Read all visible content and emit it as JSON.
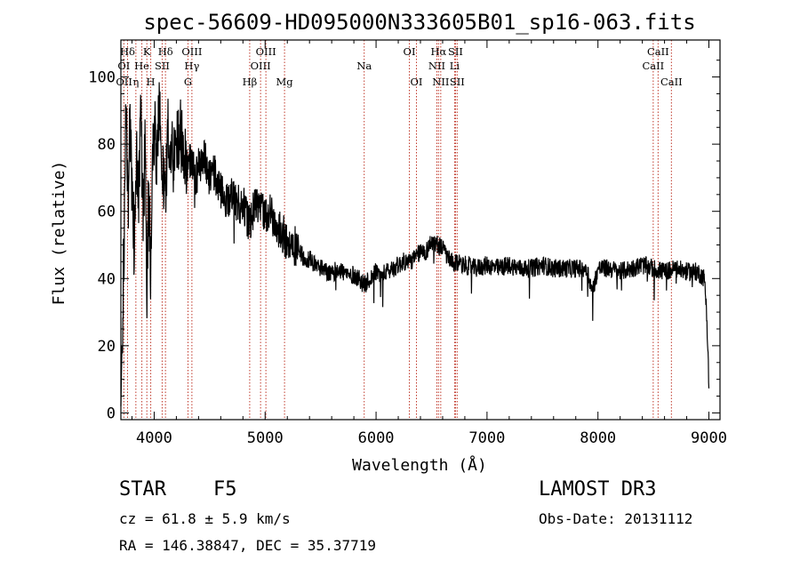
{
  "chart_data": {
    "type": "line",
    "title": "spec-56609-HD095000N333605B01_sp16-063.fits",
    "xlabel": "Wavelength (Å)",
    "ylabel": "Flux (relative)",
    "xlim": [
      3700,
      9100
    ],
    "ylim": [
      -2,
      111
    ],
    "xticks": [
      4000,
      5000,
      6000,
      7000,
      8000,
      9000
    ],
    "yticks": [
      0,
      20,
      40,
      60,
      80,
      100
    ],
    "grid": false,
    "series": [
      {
        "name": "flux",
        "x": [
          3700,
          3710,
          3730,
          3750,
          3765,
          3780,
          3800,
          3820,
          3840,
          3860,
          3880,
          3900,
          3920,
          3935,
          3950,
          3968,
          3990,
          4020,
          4050,
          4080,
          4102,
          4120,
          4150,
          4180,
          4220,
          4260,
          4300,
          4340,
          4370,
          4400,
          4450,
          4500,
          4550,
          4600,
          4650,
          4700,
          4750,
          4800,
          4861,
          4900,
          4950,
          5000,
          5050,
          5100,
          5150,
          5200,
          5250,
          5300,
          5350,
          5400,
          5450,
          5500,
          5550,
          5600,
          5650,
          5700,
          5750,
          5800,
          5850,
          5890,
          5950,
          6000,
          6050,
          6100,
          6150,
          6200,
          6250,
          6300,
          6350,
          6400,
          6450,
          6500,
          6563,
          6600,
          6650,
          6700,
          6750,
          6800,
          6900,
          7000,
          7100,
          7200,
          7300,
          7400,
          7500,
          7600,
          7700,
          7800,
          7900,
          7950,
          8000,
          8100,
          8200,
          8300,
          8400,
          8500,
          8600,
          8700,
          8800,
          8900,
          8960,
          8980,
          9000
        ],
        "y": [
          2,
          20,
          55,
          95,
          60,
          85,
          70,
          50,
          80,
          66,
          88,
          58,
          82,
          34,
          70,
          44,
          85,
          78,
          90,
          72,
          58,
          88,
          80,
          76,
          84,
          78,
          72,
          76,
          69,
          73,
          76,
          70,
          71,
          66,
          63,
          66,
          62,
          63,
          56,
          61,
          62,
          60,
          59,
          56,
          54,
          51,
          50,
          49,
          46,
          46,
          44,
          43,
          42,
          41,
          43,
          42,
          41,
          41,
          40,
          38,
          40,
          42,
          41,
          42,
          43,
          44,
          45,
          45,
          46,
          48,
          48,
          51,
          50,
          49,
          46,
          44,
          45,
          44,
          43,
          44,
          43,
          44,
          43,
          43,
          44,
          43,
          43,
          43,
          43,
          36,
          43,
          43,
          42,
          43,
          44,
          43,
          42,
          43,
          42,
          42,
          40,
          30,
          8
        ]
      }
    ],
    "annotations": [
      {
        "label": "Hδ",
        "row": 1,
        "line_x": 3760
      },
      {
        "label": "K",
        "row": 1,
        "line_x": 3934
      },
      {
        "label": "Hδ",
        "row": 1,
        "line_x": 4102
      },
      {
        "label": "OIII",
        "row": 1,
        "line_x": 4340
      },
      {
        "label": "OIII",
        "row": 1,
        "line_x": 5007
      },
      {
        "label": "OI",
        "row": 1,
        "line_x": 6300
      },
      {
        "label": "Hα",
        "row": 1,
        "line_x": 6563
      },
      {
        "label": "SII",
        "row": 1,
        "line_x": 6716
      },
      {
        "label": "CaII",
        "row": 1,
        "line_x": 8542
      },
      {
        "label": "OI",
        "row": 2,
        "line_x": 3727
      },
      {
        "label": "He",
        "row": 2,
        "line_x": 3889
      },
      {
        "label": "SII",
        "row": 2,
        "line_x": 4072
      },
      {
        "label": "Hγ",
        "row": 2,
        "line_x": 4340
      },
      {
        "label": "OIII",
        "row": 2,
        "line_x": 4959
      },
      {
        "label": "Na",
        "row": 2,
        "line_x": 5893
      },
      {
        "label": "NII",
        "row": 2,
        "line_x": 6548
      },
      {
        "label": "Li",
        "row": 2,
        "line_x": 6708
      },
      {
        "label": "CaII",
        "row": 2,
        "line_x": 8498
      },
      {
        "label": "OII",
        "row": 3,
        "line_x": 3729
      },
      {
        "label": "η",
        "row": 3,
        "line_x": 3835
      },
      {
        "label": "H",
        "row": 3,
        "line_x": 3969
      },
      {
        "label": "G",
        "row": 3,
        "line_x": 4305
      },
      {
        "label": "Hβ",
        "row": 3,
        "line_x": 4861
      },
      {
        "label": "Mg",
        "row": 3,
        "line_x": 5175
      },
      {
        "label": "OI",
        "row": 3,
        "line_x": 6364
      },
      {
        "label": "NII",
        "row": 3,
        "line_x": 6583
      },
      {
        "label": "SII",
        "row": 3,
        "line_x": 6731
      },
      {
        "label": "CaII",
        "row": 3,
        "line_x": 8662
      }
    ],
    "marker_lines": [
      3727,
      3760,
      3835,
      3889,
      3934,
      3969,
      4072,
      4102,
      4305,
      4340,
      4861,
      4959,
      5007,
      5175,
      5893,
      6300,
      6364,
      6548,
      6563,
      6583,
      6708,
      6716,
      6731,
      8498,
      8542,
      8662
    ]
  },
  "info": {
    "object_class": "STAR",
    "subclass": "F5",
    "survey": "LAMOST DR3",
    "redshift": "cz = 61.8 ± 5.9 km/s",
    "obs_date": "Obs-Date: 20131112",
    "coords": "RA = 146.38847, DEC =  35.37719"
  }
}
